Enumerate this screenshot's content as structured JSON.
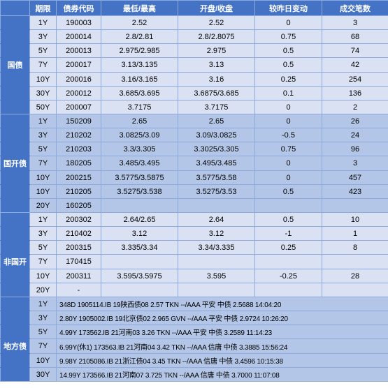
{
  "colors": {
    "header_bg": "#4472c4",
    "header_fg": "#ffffff",
    "border": "#8ea9db",
    "band1": "#d9e1f2",
    "band2": "#b4c6e7"
  },
  "headers": {
    "period": "期限",
    "code": "债券代码",
    "low_high": "最低/最高",
    "open_close": "开盘/收盘",
    "change": "较昨日变动",
    "volume": "成交笔数"
  },
  "groups": [
    {
      "name": "guozhai",
      "label": "国债",
      "bg": "#d9e1f2",
      "cat_bg": "#4472c4",
      "rows": [
        {
          "period": "1Y",
          "code": "190003",
          "low_high": "2.52",
          "open_close": "2.52",
          "change": "0",
          "volume": "3"
        },
        {
          "period": "3Y",
          "code": "200014",
          "low_high": "2.8/2.81",
          "open_close": "2.8/2.8075",
          "change": "0.75",
          "volume": "68"
        },
        {
          "period": "5Y",
          "code": "200013",
          "low_high": "2.975/2.985",
          "open_close": "2.975",
          "change": "0.5",
          "volume": "74"
        },
        {
          "period": "7Y",
          "code": "200017",
          "low_high": "3.13/3.135",
          "open_close": "3.13",
          "change": "0.5",
          "volume": "42"
        },
        {
          "period": "10Y",
          "code": "200016",
          "low_high": "3.16/3.165",
          "open_close": "3.16",
          "change": "0.25",
          "volume": "254"
        },
        {
          "period": "30Y",
          "code": "200012",
          "low_high": "3.685/3.695",
          "open_close": "3.6875/3.685",
          "change": "0.1",
          "volume": "136"
        },
        {
          "period": "50Y",
          "code": "200007",
          "low_high": "3.7175",
          "open_close": "3.7175",
          "change": "0",
          "volume": "2"
        }
      ]
    },
    {
      "name": "guokaizhai",
      "label": "国开债",
      "bg": "#b4c6e7",
      "cat_bg": "#4472c4",
      "rows": [
        {
          "period": "1Y",
          "code": "150209",
          "low_high": "2.65",
          "open_close": "2.65",
          "change": "0",
          "volume": "26"
        },
        {
          "period": "3Y",
          "code": "210202",
          "low_high": "3.0825/3.09",
          "open_close": "3.09/3.0825",
          "change": "-0.5",
          "volume": "24"
        },
        {
          "period": "5Y",
          "code": "210203",
          "low_high": "3.3/3.305",
          "open_close": "3.3025/3.305",
          "change": "0.75",
          "volume": "96"
        },
        {
          "period": "7Y",
          "code": "180205",
          "low_high": "3.485/3.495",
          "open_close": "3.495/3.485",
          "change": "0",
          "volume": "3"
        },
        {
          "period": "10Y",
          "code": "200215",
          "low_high": "3.5775/3.5875",
          "open_close": "3.5775/3.58",
          "change": "0",
          "volume": "457"
        },
        {
          "period": "10Y",
          "code": "210205",
          "low_high": "3.5275/3.538",
          "open_close": "3.5275/3.53",
          "change": "0.5",
          "volume": "423"
        },
        {
          "period": "20Y",
          "code": "160205",
          "low_high": "",
          "open_close": "",
          "change": "",
          "volume": ""
        }
      ]
    },
    {
      "name": "feiguokai",
      "label": "非国开",
      "bg": "#d9e1f2",
      "cat_bg": "#4472c4",
      "rows": [
        {
          "period": "1Y",
          "code": "200302",
          "low_high": "2.64/2.65",
          "open_close": "2.64",
          "change": "0.5",
          "volume": "10"
        },
        {
          "period": "3Y",
          "code": "210402",
          "low_high": "3.12",
          "open_close": "3.12",
          "change": "-1",
          "volume": "1"
        },
        {
          "period": "5Y",
          "code": "200315",
          "low_high": "3.335/3.34",
          "open_close": "3.34/3.335",
          "change": "0.25",
          "volume": "8"
        },
        {
          "period": "7Y",
          "code": "170415",
          "low_high": "",
          "open_close": "",
          "change": "",
          "volume": ""
        },
        {
          "period": "10Y",
          "code": "200311",
          "low_high": "3.595/3.5975",
          "open_close": "3.595",
          "change": "-0.25",
          "volume": "28"
        },
        {
          "period": "20Y",
          "code": "-",
          "low_high": "",
          "open_close": "",
          "change": "",
          "volume": ""
        }
      ]
    }
  ],
  "local": {
    "name": "difangzhai",
    "label": "地方债",
    "bg": "#b4c6e7",
    "cat_bg": "#4472c4",
    "rows": [
      {
        "period": "1Y",
        "text": "348D  1905114.IB  19陕西债08  2.57  TKN  --/AAA  平安  中债 2.5688  14:04:20"
      },
      {
        "period": "3Y",
        "text": "2.80Y  1905002.IB  19北京债02  2.965  GVN  --/AAA  平安  中债 2.9724  10:26:20"
      },
      {
        "period": "5Y",
        "text": "4.99Y  173562.IB  21河南03  3.26  TKN  --/AAA  平安  中债 3.2589  11:14:23"
      },
      {
        "period": "7Y",
        "text": "6.99Y(休1)  173563.IB  21河南04  3.42  TKN  --/AAA  信唐  中债 3.3885  15:56:24"
      },
      {
        "period": "10Y",
        "text": "9.98Y  2105086.IB  21浙江债04  3.45  TKN  --/AAA  信唐  中债 3.4596  10:15:38"
      },
      {
        "period": "30Y",
        "text": "14.99Y  173566.IB  21河南07  3.725  TKN  --/AAA  信唐  中债 3.7000  11:07:08"
      }
    ]
  }
}
